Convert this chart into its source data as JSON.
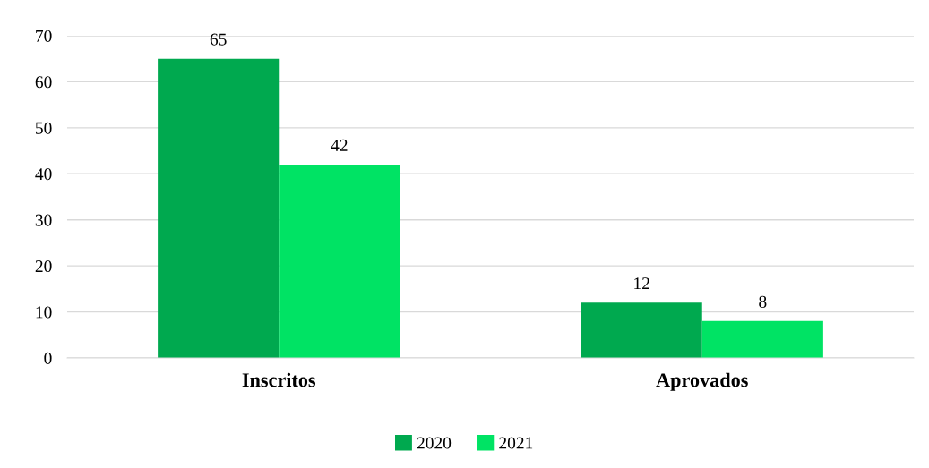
{
  "chart_data": {
    "type": "bar",
    "categories": [
      "Inscritos",
      "Aprovados"
    ],
    "series": [
      {
        "name": "2020",
        "color": "#00a94f",
        "values": [
          65,
          12
        ]
      },
      {
        "name": "2021",
        "color": "#00e364",
        "values": [
          42,
          8
        ]
      }
    ],
    "ylim": [
      0,
      70
    ],
    "yticks": [
      0,
      10,
      20,
      30,
      40,
      50,
      60,
      70
    ],
    "grid": "y",
    "legend": "bottom",
    "data_labels": true
  }
}
